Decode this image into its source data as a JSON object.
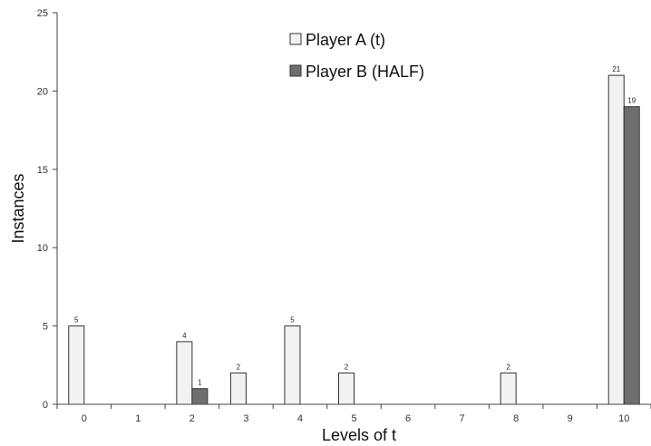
{
  "chart_data": {
    "type": "bar",
    "title": "",
    "xlabel": "Levels of t",
    "ylabel": "Instances",
    "categories": [
      "0",
      "1",
      "2",
      "3",
      "4",
      "5",
      "6",
      "7",
      "8",
      "9",
      "10"
    ],
    "ylim": [
      0,
      25
    ],
    "yticks": [
      "0",
      "5",
      "10",
      "15",
      "20",
      "25"
    ],
    "grid": false,
    "legend_position": "top-center",
    "series": [
      {
        "name": "Player A (t)",
        "color": "#f2f2f2",
        "values": [
          5,
          0,
          4,
          2,
          5,
          2,
          0,
          0,
          2,
          0,
          21
        ]
      },
      {
        "name": "Player B (HALF)",
        "color": "#6e6e6e",
        "values": [
          0,
          0,
          1,
          0,
          0,
          0,
          0,
          0,
          0,
          0,
          19
        ]
      }
    ]
  }
}
